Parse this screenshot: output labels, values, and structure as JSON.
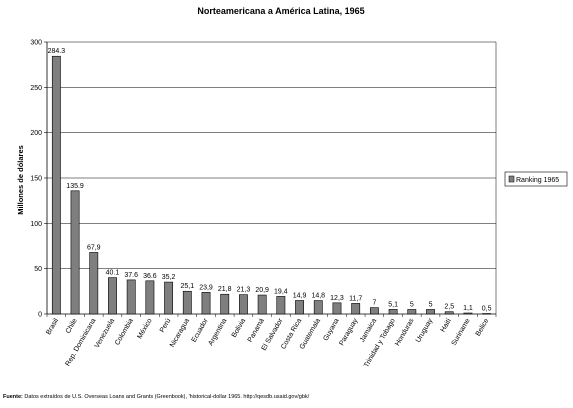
{
  "chart_data": {
    "type": "bar",
    "title": "Norteamericana a América Latina, 1965",
    "ylabel": "Millones de dólares",
    "xlabel": "",
    "ylim": [
      0,
      300
    ],
    "yticks": [
      0,
      50,
      100,
      150,
      200,
      250,
      300
    ],
    "grid": true,
    "legend_position": "right",
    "bar_color": "#7f7f7f",
    "categories": [
      "Brasil",
      "Chile",
      "Rep. Dominicana",
      "Venezuela",
      "Colombia",
      "México",
      "Perú",
      "Nicaragua",
      "Ecuador",
      "Argentina",
      "Bolivia",
      "Panamá",
      "El Salvador",
      "Costa Rica",
      "Guatemala",
      "Guyana",
      "Paraguay",
      "Jamaica",
      "Trinidad y Tobago",
      "Honduras",
      "Uruguay",
      "Haití",
      "Suriname",
      "Belice"
    ],
    "series": [
      {
        "name": "Ranking 1965",
        "values": [
          284.3,
          135.9,
          67.9,
          40.1,
          37.6,
          36.6,
          35.2,
          25.1,
          23.9,
          21.8,
          21.3,
          20.9,
          19.4,
          14.9,
          14.8,
          12.3,
          11.7,
          7,
          5.1,
          5,
          5,
          2.5,
          1.1,
          0.5
        ],
        "labels": [
          "284.3",
          "135.9",
          "67,9",
          "40.1",
          "37.6",
          "36.6",
          "35,2",
          "25,1",
          "23,9",
          "21,8",
          "21,3",
          "20,9",
          "19,4",
          "14,9",
          "14,8",
          "12,3",
          "11,7",
          "7",
          "5,1",
          "5",
          "5",
          "2,5",
          "1,1",
          "0,5"
        ]
      }
    ]
  },
  "source": {
    "label": "Fuente:",
    "text": "Datos extraídos de U.S. Overseas Loans and Grants (Greenbook), 'historical-dollar 1965. http://qesdb.usaid.gov/gbk/"
  }
}
